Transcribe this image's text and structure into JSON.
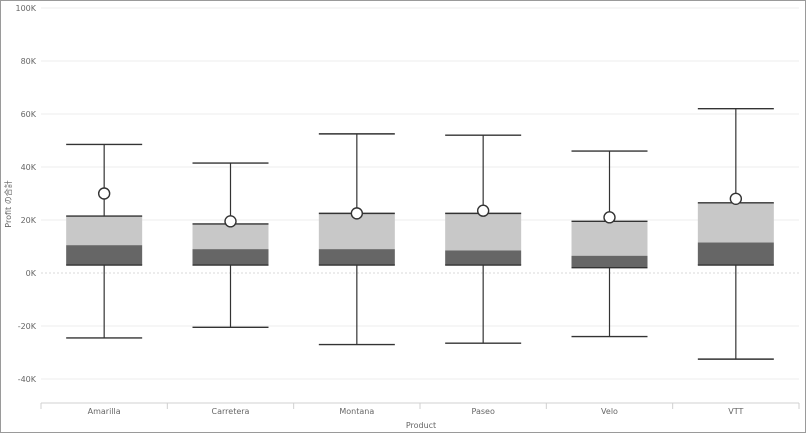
{
  "chart_data": {
    "type": "boxplot",
    "xlabel": "Product",
    "ylabel": "Profit の合計",
    "ylim": [
      -40000,
      100000
    ],
    "yticks": [
      -40000,
      -20000,
      0,
      20000,
      40000,
      60000,
      80000,
      100000
    ],
    "ytick_labels": [
      "-40K",
      "-20K",
      "0K",
      "20K",
      "40K",
      "60K",
      "80K",
      "100K"
    ],
    "categories": [
      "Amarilla",
      "Carretera",
      "Montana",
      "Paseo",
      "Velo",
      "VTT"
    ],
    "boxes": [
      {
        "category": "Amarilla",
        "min": -24500,
        "q1": 3000,
        "median": 10500,
        "q3": 21500,
        "max": 48500,
        "mean": 30000
      },
      {
        "category": "Carretera",
        "min": -20500,
        "q1": 3000,
        "median": 9000,
        "q3": 18500,
        "max": 41500,
        "mean": 19500
      },
      {
        "category": "Montana",
        "min": -27000,
        "q1": 3000,
        "median": 9000,
        "q3": 22500,
        "max": 52500,
        "mean": 22500
      },
      {
        "category": "Paseo",
        "min": -26500,
        "q1": 3000,
        "median": 8500,
        "q3": 22500,
        "max": 52000,
        "mean": 23500
      },
      {
        "category": "Velo",
        "min": -24000,
        "q1": 2000,
        "median": 6500,
        "q3": 19500,
        "max": 46000,
        "mean": 21000
      },
      {
        "category": "VTT",
        "min": -32500,
        "q1": 3000,
        "median": 11500,
        "q3": 26500,
        "max": 62000,
        "mean": 28000
      }
    ],
    "colors": {
      "upper_box": "#c8c8c8",
      "lower_box": "#666666",
      "whisker": "#333333",
      "mean_marker_fill": "#ffffff",
      "mean_marker_stroke": "#333333"
    },
    "grid": true
  }
}
